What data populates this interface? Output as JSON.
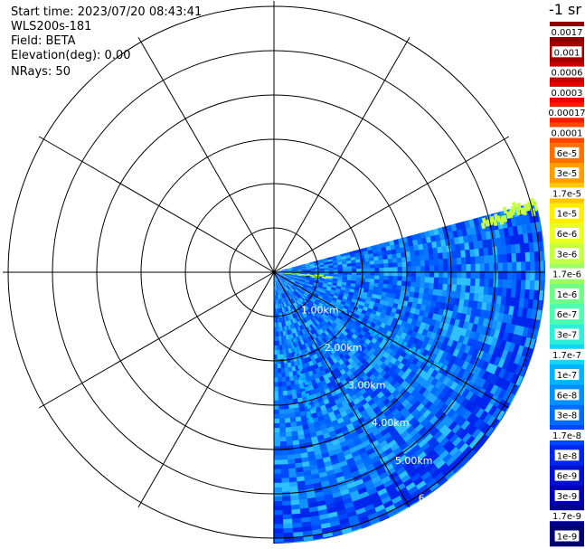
{
  "info": {
    "start_time": "Start time: 2023/07/20 08:43:41",
    "instrument": "WLS200s-181",
    "field": "Field: BETA",
    "elevation": "Elevation(deg): 0.00",
    "nrays": "NRays: 50"
  },
  "colorbar": {
    "unit_label": "-1 sr",
    "labels": [
      "0.0017",
      "0.001",
      "0.0006",
      "0.0003",
      "0.00017",
      "0.0001",
      "6e-5",
      "3e-5",
      "1.7e-5",
      "1e-5",
      "6e-6",
      "3e-6",
      "1.7e-6",
      "1e-6",
      "6e-7",
      "3e-7",
      "1.7e-7",
      "1e-7",
      "6e-8",
      "3e-8",
      "1.7e-8",
      "1e-8",
      "6e-9",
      "3e-9",
      "1.7e-9",
      "1e-9"
    ],
    "colors": [
      "#8b0000",
      "#a50000",
      "#c80000",
      "#e80000",
      "#ff1a00",
      "#ff4500",
      "#ff7000",
      "#ff9e00",
      "#ffc800",
      "#ffee00",
      "#e9ff1f",
      "#c4ff42",
      "#9aff63",
      "#70ff86",
      "#4cffb0",
      "#2ef0d8",
      "#12d6f5",
      "#00b4ff",
      "#0090ff",
      "#006cff",
      "#0048ff",
      "#0026ee",
      "#0010cf",
      "#0000b0",
      "#000090",
      "#000070"
    ]
  },
  "chart_data": {
    "type": "heatmap",
    "projection": "polar-ppi",
    "range_unit": "km",
    "range_rings_km": [
      1,
      2,
      3,
      4,
      5,
      6
    ],
    "range_labels": [
      "1.00km",
      "2.00km",
      "3.00km",
      "4.00km",
      "5.00km",
      "6"
    ],
    "azimuth_spokes_deg": [
      0,
      30,
      60,
      90,
      120,
      150,
      180,
      210,
      240,
      270,
      300,
      330
    ],
    "scan_sector_deg": [
      75,
      180
    ],
    "max_range_km": 6.2,
    "field": "BETA",
    "background_level": "1e-8",
    "features": [
      {
        "azimuth_deg": 76,
        "range_km": [
          4.8,
          6.2
        ],
        "level": "3e-6"
      },
      {
        "azimuth_deg": 120,
        "range_km": [
          1.0,
          4.5
        ],
        "level": "1e-7"
      },
      {
        "azimuth_deg": 95,
        "range_km": [
          0.0,
          1.3
        ],
        "level": "3e-6"
      },
      {
        "azimuth_deg": 165,
        "range_km": [
          1.5,
          3.5
        ],
        "level": "1e-7"
      }
    ]
  }
}
